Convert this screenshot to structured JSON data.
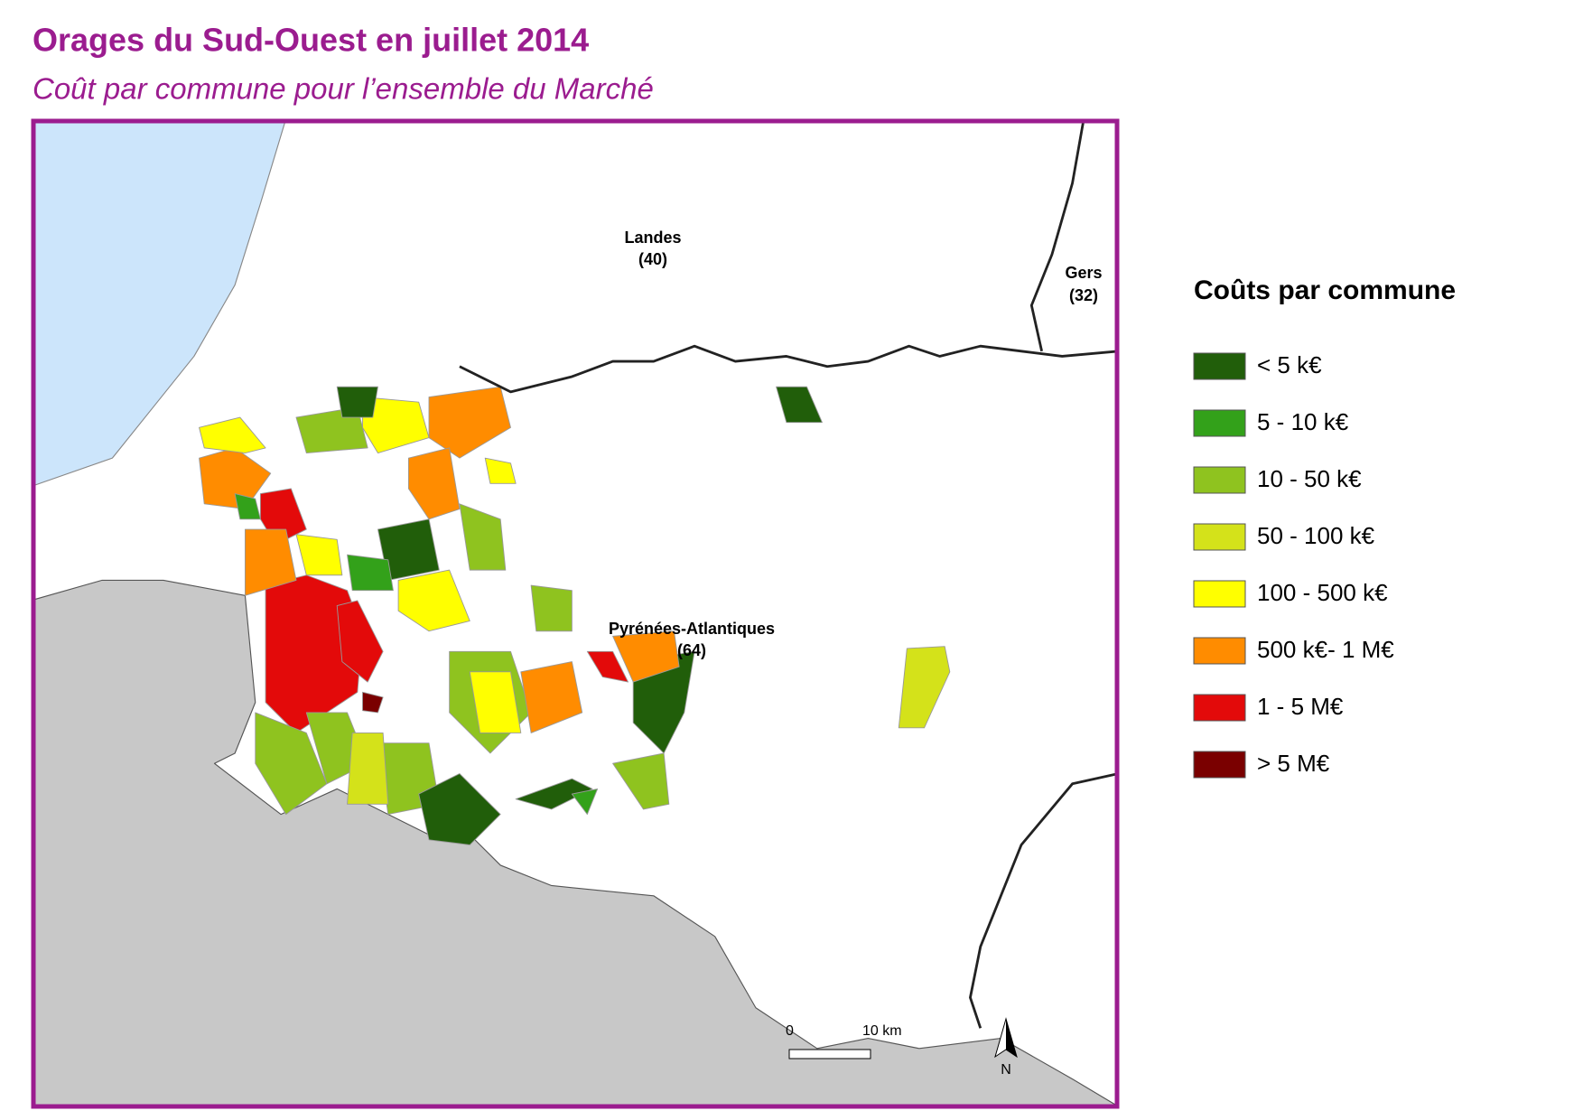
{
  "header": {
    "title": "Orages du Sud-Ouest en juillet 2014",
    "subtitle": "Coût par commune pour l’ensemble du Marché"
  },
  "map": {
    "labels": [
      {
        "name": "Landes",
        "code": "(40)"
      },
      {
        "name": "Gers",
        "code": "(32)"
      },
      {
        "name": "Pyrénées-Atlantiques",
        "code": "(64)"
      }
    ],
    "scale": {
      "start": "0",
      "end": "10 km"
    },
    "north": "N"
  },
  "legend": {
    "title": "Coûts par commune",
    "items": [
      {
        "label": "< 5 k€",
        "color": "#215e0a"
      },
      {
        "label": "5 - 10 k€",
        "color": "#33a11a"
      },
      {
        "label": "10 - 50 k€",
        "color": "#8fc31f"
      },
      {
        "label": "50 - 100 k€",
        "color": "#d4e21a"
      },
      {
        "label": "100 - 500 k€",
        "color": "#ffff00"
      },
      {
        "label": "500 k€- 1 M€",
        "color": "#ff8c00"
      },
      {
        "label": "1 - 5 M€",
        "color": "#e30a0a"
      },
      {
        "label": "> 5 M€",
        "color": "#7a0000"
      }
    ]
  }
}
